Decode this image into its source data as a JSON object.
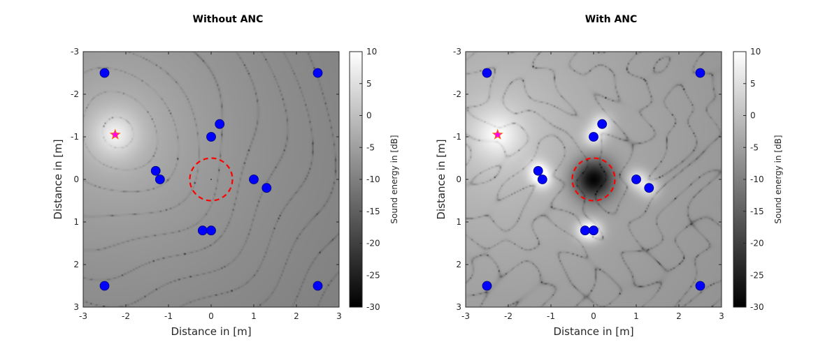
{
  "chart_data": [
    {
      "type": "heatmap",
      "title": "Without ANC",
      "xlabel": "Distance in [m]",
      "ylabel": "Distance in [m]",
      "xlim": [
        -3,
        3
      ],
      "ylim": [
        -3,
        3
      ],
      "y_reversed": true,
      "xticks": [
        -3,
        -2,
        -1,
        0,
        1,
        2,
        3
      ],
      "yticks": [
        -3,
        -2,
        -1,
        0,
        1,
        2,
        3
      ],
      "colorbar": {
        "label": "Sound energy in [dB]",
        "range": [
          -30,
          10
        ],
        "ticks": [
          -30,
          -25,
          -20,
          -15,
          -10,
          -5,
          0,
          5,
          10
        ],
        "colormap": "gray"
      },
      "noise_source": {
        "x": -2.25,
        "y": -1.05,
        "color": "#ff00ff"
      },
      "speakers": {
        "color": "#0000ff",
        "points": [
          [
            -2.5,
            -2.5
          ],
          [
            2.5,
            -2.5
          ],
          [
            -2.5,
            2.5
          ],
          [
            2.5,
            2.5
          ],
          [
            0.2,
            -1.3
          ],
          [
            0,
            -1.0
          ],
          [
            -1.3,
            -0.2
          ],
          [
            -1.2,
            0.0
          ],
          [
            1.0,
            0.0
          ],
          [
            1.3,
            0.2
          ],
          [
            -0.2,
            1.2
          ],
          [
            0.0,
            1.2
          ]
        ]
      },
      "quiet_zone": {
        "center": [
          0,
          0
        ],
        "radius": 0.5,
        "color": "#ff0000",
        "style": "dashed"
      },
      "field_mode": "without"
    },
    {
      "type": "heatmap",
      "title": "With ANC",
      "xlabel": "Distance in [m]",
      "ylabel": "Distance in [m]",
      "xlim": [
        -3,
        3
      ],
      "ylim": [
        -3,
        3
      ],
      "y_reversed": true,
      "xticks": [
        -3,
        -2,
        -1,
        0,
        1,
        2,
        3
      ],
      "yticks": [
        -3,
        -2,
        -1,
        0,
        1,
        2,
        3
      ],
      "colorbar": {
        "label": "Sound energy in [dB]",
        "range": [
          -30,
          10
        ],
        "ticks": [
          -30,
          -25,
          -20,
          -15,
          -10,
          -5,
          0,
          5,
          10
        ],
        "colormap": "gray"
      },
      "noise_source": {
        "x": -2.25,
        "y": -1.05,
        "color": "#ff00ff"
      },
      "speakers": {
        "color": "#0000ff",
        "points": [
          [
            -2.5,
            -2.5
          ],
          [
            2.5,
            -2.5
          ],
          [
            -2.5,
            2.5
          ],
          [
            2.5,
            2.5
          ],
          [
            0.2,
            -1.3
          ],
          [
            0,
            -1.0
          ],
          [
            -1.3,
            -0.2
          ],
          [
            -1.2,
            0.0
          ],
          [
            1.0,
            0.0
          ],
          [
            1.3,
            0.2
          ],
          [
            -0.2,
            1.2
          ],
          [
            0.0,
            1.2
          ]
        ]
      },
      "quiet_zone": {
        "center": [
          0,
          0
        ],
        "radius": 0.5,
        "color": "#ff0000",
        "style": "dashed"
      },
      "field_mode": "with"
    }
  ]
}
